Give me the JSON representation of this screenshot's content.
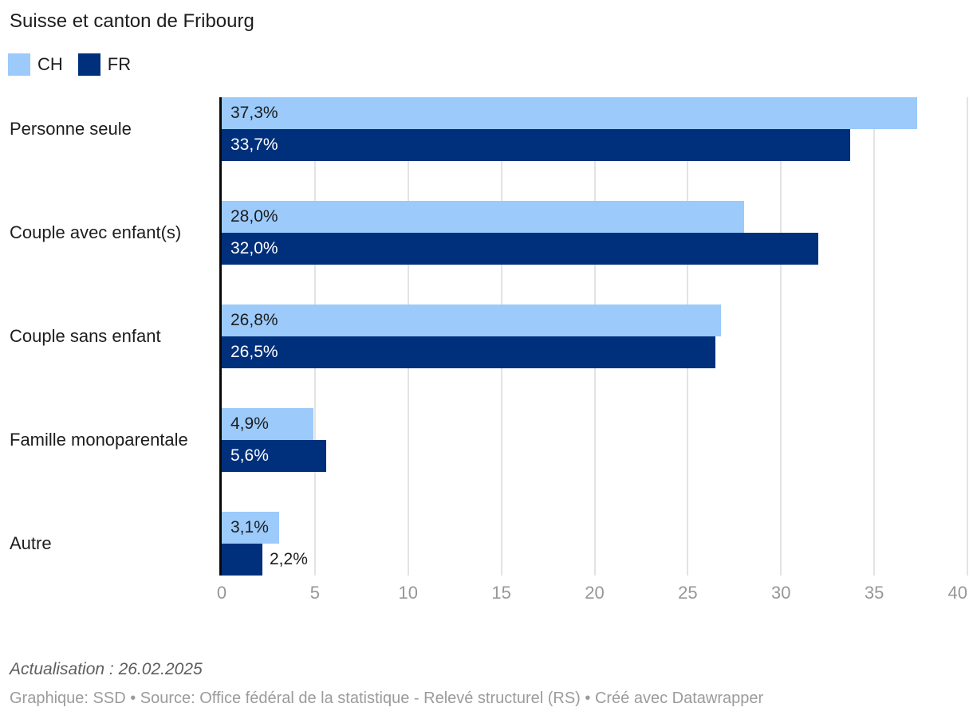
{
  "title": "Suisse et canton de Fribourg",
  "legend": [
    {
      "label": "CH",
      "color": "#9bcafb"
    },
    {
      "label": "FR",
      "color": "#00307c"
    }
  ],
  "chart_data": {
    "type": "bar",
    "orientation": "horizontal",
    "title": "Suisse et canton de Fribourg",
    "categories": [
      "Personne seule",
      "Couple avec enfant(s)",
      "Couple sans enfant",
      "Famille monoparentale",
      "Autre"
    ],
    "series": [
      {
        "name": "CH",
        "color": "#9bcafb",
        "values": [
          37.3,
          28.0,
          26.8,
          4.9,
          3.1
        ],
        "labels": [
          "37,3%",
          "28,0%",
          "26,8%",
          "4,9%",
          "3,1%"
        ]
      },
      {
        "name": "FR",
        "color": "#00307c",
        "values": [
          33.7,
          32.0,
          26.5,
          5.6,
          2.2
        ],
        "labels": [
          "33,7%",
          "32,0%",
          "26,5%",
          "5,6%",
          "2,2%"
        ]
      }
    ],
    "xlim": [
      0,
      40
    ],
    "xticks": [
      0,
      5,
      10,
      15,
      20,
      25,
      30,
      35,
      40
    ],
    "grid": "vertical",
    "legend_position": "top-left",
    "value_label_format": "percent-comma-decimal"
  },
  "colors": {
    "axis_line": "#0a0a0a",
    "gridline": "#e3e3e3",
    "tick_label": "#979797",
    "text": "#1d1d1d"
  },
  "footer": {
    "note": "Actualisation : 26.02.2025",
    "byline": "Graphique: SSD • Source: Office fédéral de la statistique - Relevé structurel (RS) • Créé avec Datawrapper"
  }
}
